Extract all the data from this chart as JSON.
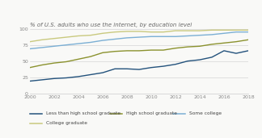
{
  "title": "% of U.S. adults who use the internet, by education level",
  "years": [
    2000,
    2001,
    2002,
    2003,
    2004,
    2005,
    2006,
    2007,
    2008,
    2009,
    2010,
    2011,
    2012,
    2013,
    2014,
    2015,
    2016,
    2017,
    2018
  ],
  "less_than_hs": [
    19,
    21,
    23,
    24,
    26,
    29,
    32,
    38,
    38,
    37,
    40,
    42,
    45,
    50,
    52,
    56,
    66,
    62,
    66
  ],
  "hs_graduate": [
    40,
    44,
    47,
    49,
    53,
    57,
    63,
    65,
    66,
    66,
    67,
    67,
    70,
    72,
    73,
    76,
    78,
    80,
    83
  ],
  "some_college": [
    69,
    71,
    73,
    75,
    77,
    79,
    82,
    84,
    86,
    87,
    88,
    88,
    88,
    89,
    90,
    91,
    93,
    95,
    95
  ],
  "college_grad": [
    80,
    83,
    85,
    87,
    89,
    90,
    93,
    95,
    96,
    96,
    95,
    95,
    97,
    97,
    97,
    98,
    98,
    98,
    98
  ],
  "colors": {
    "less_than_hs": "#23527c",
    "hs_graduate": "#8b922e",
    "some_college": "#7bafd4",
    "college_grad": "#c9c97e"
  },
  "ylim": [
    0,
    100
  ],
  "yticks": [
    0,
    25,
    50,
    75,
    100
  ],
  "xticks": [
    2000,
    2002,
    2004,
    2006,
    2008,
    2010,
    2012,
    2014,
    2016,
    2018
  ],
  "legend": [
    {
      "label": "Less than high school graduate",
      "color": "#23527c"
    },
    {
      "label": "High school graduate",
      "color": "#8b922e"
    },
    {
      "label": "Some college",
      "color": "#7bafd4"
    },
    {
      "label": "College graduate",
      "color": "#c9c97e"
    }
  ],
  "background_color": "#f9f9f7",
  "linewidth": 1.0,
  "title_fontsize": 5.0,
  "tick_fontsize": 4.5,
  "legend_fontsize": 4.2
}
